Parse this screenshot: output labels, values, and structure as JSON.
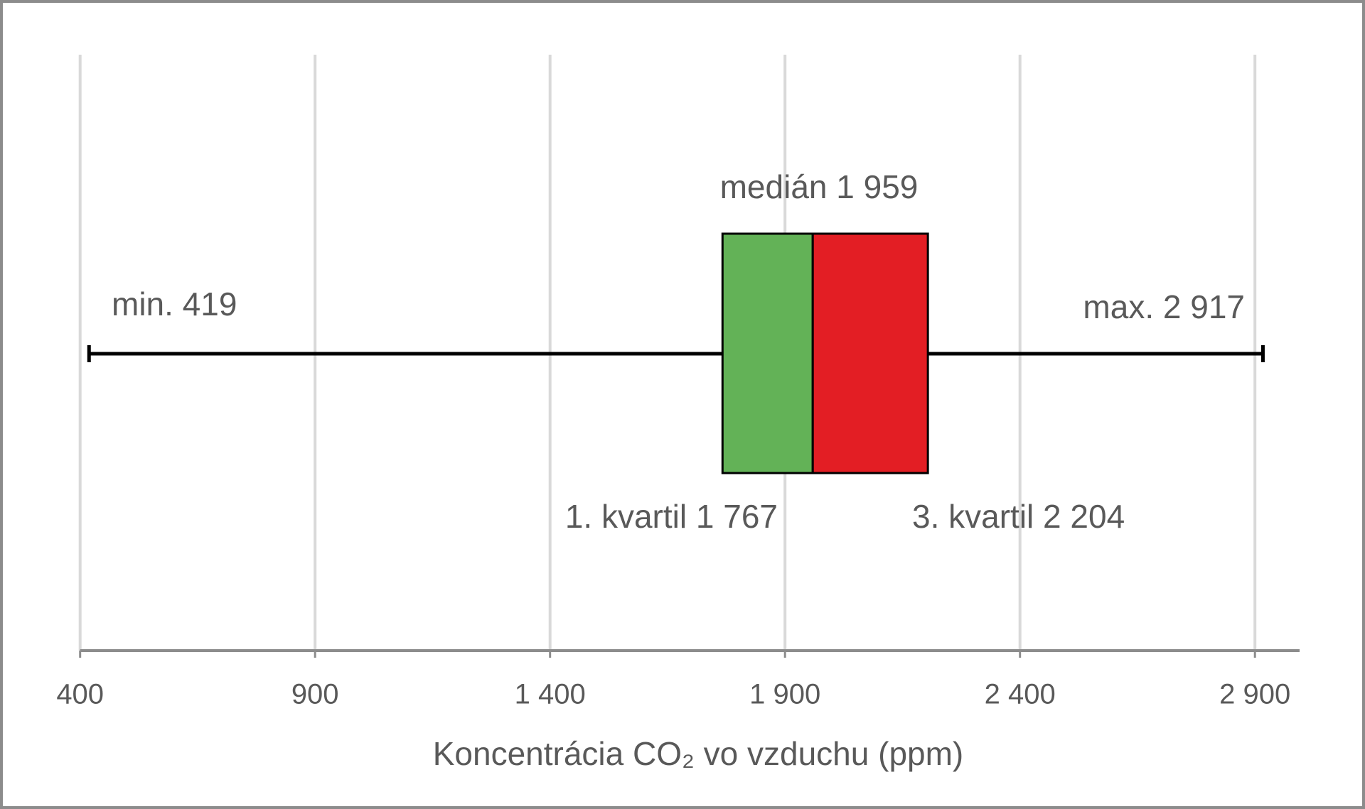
{
  "chart_data": {
    "type": "box",
    "x_label": "Koncentrácia CO₂ vo vzduchu (ppm)",
    "box": {
      "min": 419,
      "q1": 1767,
      "median": 1959,
      "q3": 2204,
      "max": 2917
    },
    "value_labels": {
      "min": "min. 419",
      "q1": "1. kvartil 1 767",
      "median": "medián 1 959",
      "q3": "3. kvartil 2 204",
      "max": "max. 2 917"
    },
    "colors": {
      "lower": "#63b257",
      "upper": "#e31e24",
      "whisker": "#000000"
    },
    "xlim": [
      400,
      2995
    ],
    "xticks": [
      400,
      900,
      {
        "value": 1400,
        "label": "1 400"
      },
      {
        "value": 1900,
        "label": "1 900"
      },
      {
        "value": 2400,
        "label": "2 400"
      },
      {
        "value": 2900,
        "label": "2 900"
      }
    ],
    "grid": true
  }
}
